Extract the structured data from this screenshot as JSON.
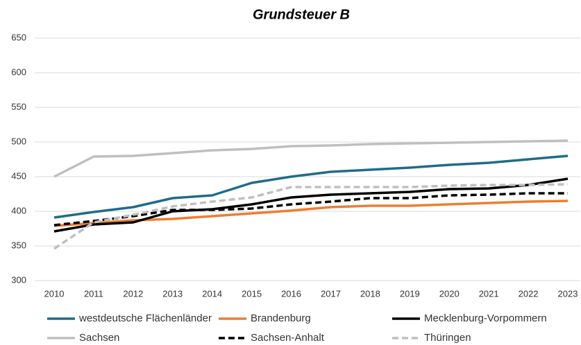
{
  "chart_data": {
    "type": "line",
    "title": "Grundsteuer B",
    "categories": [
      "2010",
      "2011",
      "2012",
      "2013",
      "2014",
      "2015",
      "2016",
      "2017",
      "2018",
      "2019",
      "2020",
      "2021",
      "2022",
      "2023"
    ],
    "ylim": [
      300,
      650
    ],
    "yticks": [
      300,
      350,
      400,
      450,
      500,
      550,
      600,
      650
    ],
    "grid": true,
    "series": [
      {
        "name": "westdeutsche Flächenländer",
        "color": "#1f6b8a",
        "dash": false,
        "values": [
          391,
          399,
          406,
          419,
          423,
          441,
          450,
          457,
          460,
          463,
          467,
          470,
          475,
          480
        ]
      },
      {
        "name": "Brandenburg",
        "color": "#ed7d31",
        "dash": false,
        "values": [
          379,
          383,
          387,
          389,
          393,
          397,
          401,
          406,
          408,
          408,
          410,
          412,
          414,
          415
        ]
      },
      {
        "name": "Mecklenburg-Vorpommern",
        "color": "#000000",
        "dash": false,
        "values": [
          371,
          381,
          384,
          400,
          403,
          410,
          420,
          424,
          426,
          428,
          432,
          433,
          438,
          447
        ]
      },
      {
        "name": "Sachsen",
        "color": "#bfbfbf",
        "dash": false,
        "values": [
          450,
          479,
          480,
          484,
          488,
          490,
          494,
          495,
          497,
          498,
          499,
          500,
          501,
          502
        ]
      },
      {
        "name": "Sachsen-Anhalt",
        "color": "#000000",
        "dash": true,
        "values": [
          380,
          386,
          393,
          402,
          402,
          404,
          410,
          414,
          419,
          419,
          423,
          424,
          426,
          426
        ]
      },
      {
        "name": "Thüringen",
        "color": "#bfbfbf",
        "dash": true,
        "values": [
          346,
          384,
          395,
          407,
          414,
          420,
          435,
          435,
          435,
          435,
          437,
          438,
          438,
          439
        ]
      }
    ]
  }
}
